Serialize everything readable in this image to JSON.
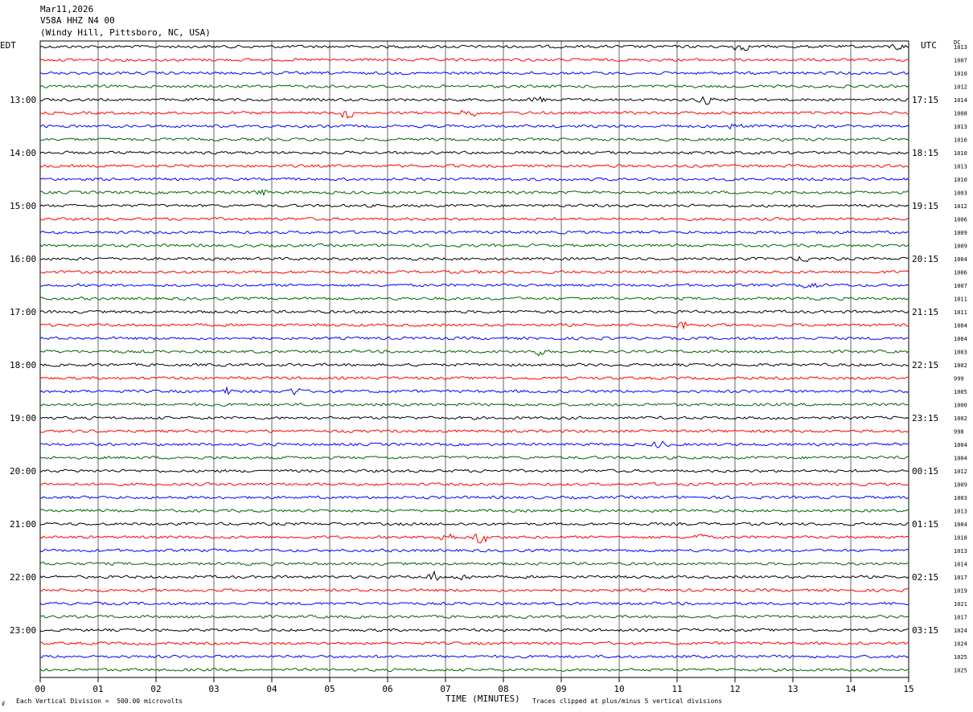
{
  "header": {
    "date": "Mar11,2026",
    "station": "V58A HHZ N4 00",
    "location": "(Windy Hill, Pittsboro, NC, USA)"
  },
  "left_zone_label": "EDT",
  "right_zone_label": "UTC",
  "dc_label": "DC",
  "footer": {
    "scale_note": "Each Vertical Division =  500.00 microvolts",
    "clip_note": "Traces clipped at plus/minus 5 vertical divisions",
    "mark": "☧"
  },
  "chart_data": {
    "type": "line",
    "title": "",
    "xlabel": "TIME (MINUTES)",
    "ylabel": "",
    "xlim": [
      0,
      15
    ],
    "x_ticks": [
      "00",
      "01",
      "02",
      "03",
      "04",
      "05",
      "06",
      "07",
      "08",
      "09",
      "10",
      "11",
      "12",
      "13",
      "14",
      "15"
    ],
    "grid": "vertical",
    "trace_colors": [
      "#000000",
      "#ff0000",
      "#0000ff",
      "#006400"
    ],
    "edt_hour_labels": [
      "13:00",
      "14:00",
      "15:00",
      "16:00",
      "17:00",
      "18:00",
      "19:00",
      "20:00",
      "21:00",
      "22:00",
      "23:00"
    ],
    "utc_hour_labels": [
      "17:15",
      "18:15",
      "19:15",
      "20:15",
      "21:15",
      "22:15",
      "23:15",
      "00:15",
      "01:15",
      "02:15",
      "03:15"
    ],
    "first_labeled_trace": 4,
    "dc_offsets": [
      1013,
      1007,
      1010,
      1012,
      1014,
      1008,
      1013,
      1016,
      1010,
      1013,
      1010,
      1003,
      1012,
      1006,
      1009,
      1009,
      1004,
      1006,
      1007,
      1011,
      1011,
      1004,
      1004,
      1003,
      1002,
      999,
      1005,
      1000,
      1002,
      998,
      1004,
      1004,
      1012,
      1009,
      1003,
      1013,
      1004,
      1018,
      1013,
      1014,
      1017,
      1019,
      1021,
      1017,
      1024,
      1024,
      1025,
      1025
    ],
    "events": [
      {
        "trace": 0,
        "minute": 12.1,
        "amp": 1.8
      },
      {
        "trace": 0,
        "minute": 14.8,
        "amp": 1.2
      },
      {
        "trace": 4,
        "minute": 8.6,
        "amp": 1.3
      },
      {
        "trace": 4,
        "minute": 11.5,
        "amp": 1.4
      },
      {
        "trace": 5,
        "minute": 5.3,
        "amp": 2.2
      },
      {
        "trace": 5,
        "minute": 7.4,
        "amp": 2.0
      },
      {
        "trace": 6,
        "minute": 12.0,
        "amp": 1.1
      },
      {
        "trace": 11,
        "minute": 3.8,
        "amp": 1.5
      },
      {
        "trace": 16,
        "minute": 13.2,
        "amp": 1.3
      },
      {
        "trace": 18,
        "minute": 13.3,
        "amp": 1.8
      },
      {
        "trace": 21,
        "minute": 11.1,
        "amp": 2.0
      },
      {
        "trace": 23,
        "minute": 8.6,
        "amp": 1.3
      },
      {
        "trace": 26,
        "minute": 3.2,
        "amp": 1.6
      },
      {
        "trace": 26,
        "minute": 4.4,
        "amp": 1.4
      },
      {
        "trace": 30,
        "minute": 10.7,
        "amp": 1.3
      },
      {
        "trace": 37,
        "minute": 7.0,
        "amp": 2.6
      },
      {
        "trace": 37,
        "minute": 7.6,
        "amp": 3.0
      },
      {
        "trace": 37,
        "minute": 11.4,
        "amp": 1.2
      },
      {
        "trace": 40,
        "minute": 6.8,
        "amp": 1.8
      },
      {
        "trace": 40,
        "minute": 7.3,
        "amp": 1.2
      }
    ]
  }
}
